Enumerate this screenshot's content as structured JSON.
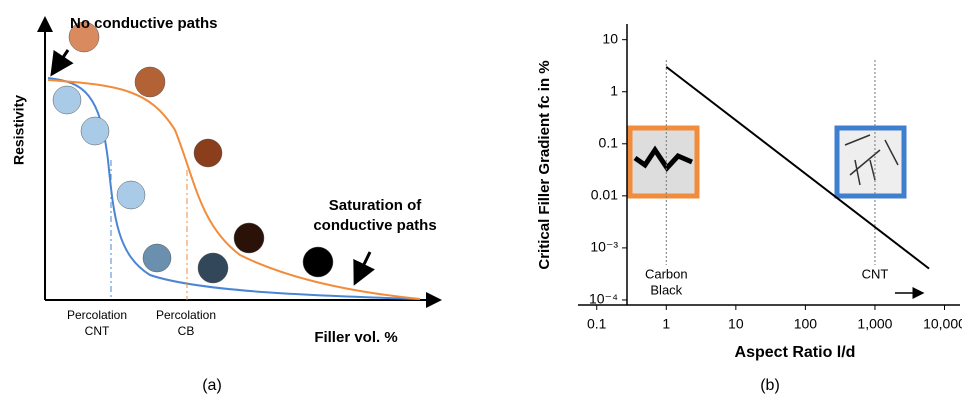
{
  "panel_a": {
    "note_top": "No conductive paths",
    "y_label": "Resistivity",
    "saturation": [
      "Saturation of",
      "conductive paths"
    ],
    "perc_cnt": [
      "Percolation",
      "CNT"
    ],
    "perc_cb": [
      "Percolation",
      "CB"
    ],
    "x_label": "Filler vol. %",
    "caption": "(a)"
  },
  "chart_data": {
    "type": "line",
    "caption": "(b)",
    "x_label": "Aspect Ratio l/d",
    "y_label": "Critical Filler Gradient  fc in %",
    "log_x": true,
    "log_y": true,
    "xlim": [
      0.08,
      12000
    ],
    "ylim": [
      8e-05,
      20
    ],
    "xticks": [
      0.1,
      1,
      10,
      100,
      {
        "value": 1000,
        "label": "1,000"
      },
      {
        "value": 10000,
        "label": "10,000"
      }
    ],
    "yticks": [
      10,
      1,
      0.1,
      0.01,
      {
        "value": 0.001,
        "label": "10⁻³"
      },
      {
        "value": 0.0001,
        "label": "10⁻⁴"
      }
    ],
    "series": [
      {
        "name": null,
        "color": "#000000",
        "x": [
          1,
          6000
        ],
        "values": [
          3,
          0.0004
        ]
      }
    ],
    "annotations": [
      {
        "x": 1,
        "text": [
          "Carbon",
          "Black"
        ]
      },
      {
        "x": 1000,
        "text": [
          "CNT"
        ]
      }
    ]
  }
}
